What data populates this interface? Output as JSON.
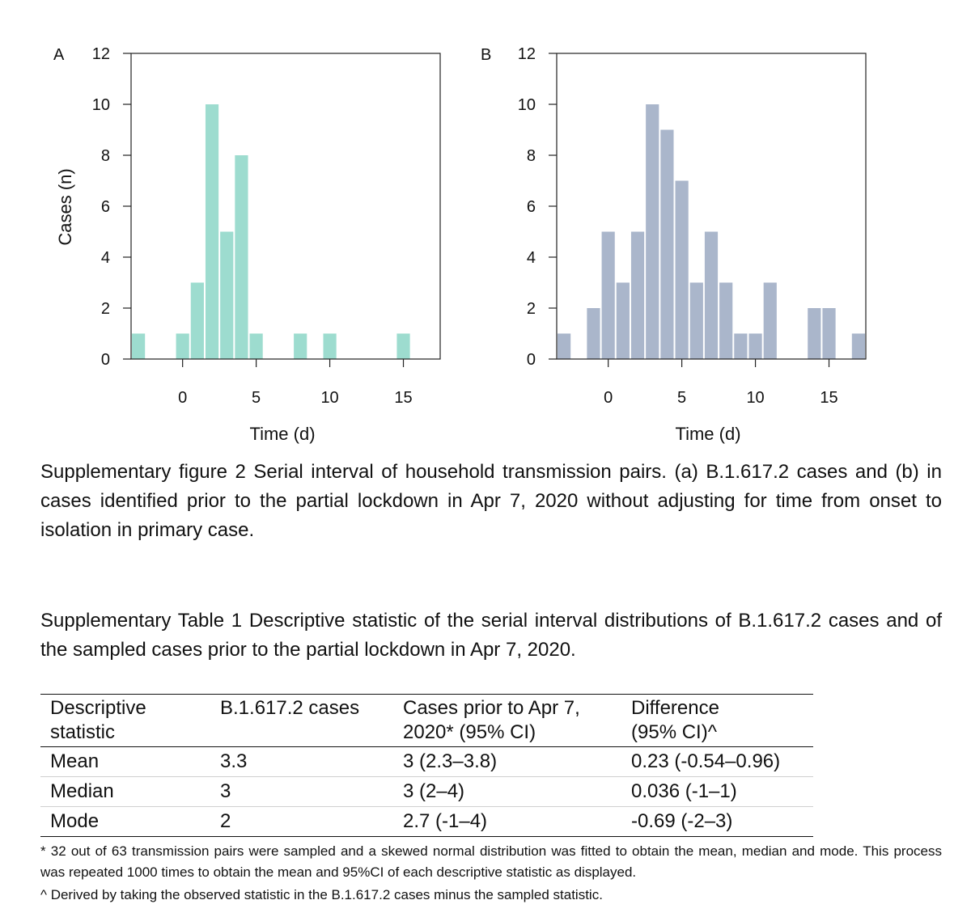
{
  "chart_data": [
    {
      "panel": "A",
      "type": "bar",
      "xlabel": "Time (d)",
      "ylabel": "Cases (n)",
      "xlim": [
        -3.5,
        17.5
      ],
      "ylim": [
        0,
        12
      ],
      "xticks": [
        0,
        5,
        10,
        15
      ],
      "yticks": [
        0,
        2,
        4,
        6,
        8,
        10,
        12
      ],
      "bin_width": 1,
      "color": "#9ddccf",
      "bins": [
        {
          "x": -3,
          "count": 1
        },
        {
          "x": 0,
          "count": 1
        },
        {
          "x": 1,
          "count": 3
        },
        {
          "x": 2,
          "count": 10
        },
        {
          "x": 3,
          "count": 5
        },
        {
          "x": 4,
          "count": 8
        },
        {
          "x": 5,
          "count": 1
        },
        {
          "x": 8,
          "count": 1
        },
        {
          "x": 10,
          "count": 1
        },
        {
          "x": 15,
          "count": 1
        }
      ]
    },
    {
      "panel": "B",
      "type": "bar",
      "xlabel": "Time (d)",
      "ylabel": "",
      "xlim": [
        -3.5,
        17.5
      ],
      "ylim": [
        0,
        12
      ],
      "xticks": [
        0,
        5,
        10,
        15
      ],
      "yticks": [
        0,
        2,
        4,
        6,
        8,
        10,
        12
      ],
      "bin_width": 1,
      "color": "#aab6cb",
      "bins": [
        {
          "x": -3,
          "count": 1
        },
        {
          "x": -1,
          "count": 2
        },
        {
          "x": 0,
          "count": 5
        },
        {
          "x": 1,
          "count": 3
        },
        {
          "x": 2,
          "count": 5
        },
        {
          "x": 3,
          "count": 10
        },
        {
          "x": 4,
          "count": 9
        },
        {
          "x": 5,
          "count": 7
        },
        {
          "x": 6,
          "count": 3
        },
        {
          "x": 7,
          "count": 5
        },
        {
          "x": 8,
          "count": 3
        },
        {
          "x": 9,
          "count": 1
        },
        {
          "x": 10,
          "count": 1
        },
        {
          "x": 11,
          "count": 3
        },
        {
          "x": 14,
          "count": 2
        },
        {
          "x": 15,
          "count": 2
        },
        {
          "x": 17,
          "count": 1
        }
      ]
    }
  ],
  "figure_caption": "Supplementary figure 2 Serial interval of household transmission pairs. (a) B.1.617.2 cases and (b) in cases identified prior to the partial lockdown in Apr 7, 2020 without adjusting for time from onset to isolation in primary case.",
  "table_caption": "Supplementary Table 1 Descriptive statistic of the serial interval distributions of B.1.617.2 cases and of the sampled cases prior to the partial lockdown in Apr 7, 2020.",
  "table": {
    "headers": [
      [
        "Descriptive",
        "statistic"
      ],
      [
        "B.1.617.2 cases",
        ""
      ],
      [
        "Cases prior to Apr 7,",
        "2020* (95% CI)"
      ],
      [
        "Difference",
        "(95% CI)^"
      ]
    ],
    "rows": [
      [
        "Mean",
        "3.3",
        "3 (2.3–3.8)",
        "0.23 (-0.54–0.96)"
      ],
      [
        "Median",
        "3",
        "3 (2–4)",
        "0.036 (-1–1)"
      ],
      [
        "Mode",
        "2",
        "2.7 (-1–4)",
        "-0.69 (-2–3)"
      ]
    ]
  },
  "footnotes": [
    "* 32 out of 63 transmission pairs were sampled and a skewed normal distribution was fitted to obtain the mean, median and mode. This process was repeated 1000 times to obtain the mean and 95%CI of each descriptive statistic as displayed.",
    "^ Derived by taking the observed statistic in the B.1.617.2 cases minus the sampled statistic."
  ]
}
